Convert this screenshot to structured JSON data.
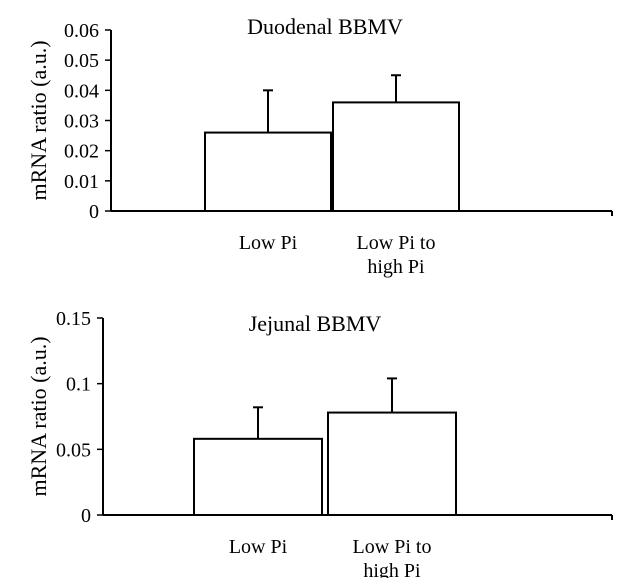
{
  "chart_data": [
    {
      "type": "bar",
      "title": "Duodenal BBMV",
      "ylabel": "mRNA ratio (a.u.)",
      "ylim": [
        0,
        0.06
      ],
      "yticks": [
        0,
        0.01,
        0.02,
        0.03,
        0.04,
        0.05,
        0.06
      ],
      "ytick_labels": [
        "0",
        "0.01",
        "0.02",
        "0.03",
        "0.04",
        "0.05",
        "0.06"
      ],
      "categories": [
        [
          "Low Pi"
        ],
        [
          "Low Pi to",
          "high Pi"
        ]
      ],
      "values": [
        0.026,
        0.036
      ],
      "errors": [
        0.014,
        0.009
      ],
      "grid": false
    },
    {
      "type": "bar",
      "title": "Jejunal BBMV",
      "ylabel": "mRNA ratio (a.u.)",
      "ylim": [
        0,
        0.15
      ],
      "yticks": [
        0,
        0.05,
        0.1,
        0.15
      ],
      "ytick_labels": [
        "0",
        "0.05",
        "0.1",
        "0.15"
      ],
      "categories": [
        [
          "Low Pi"
        ],
        [
          "Low Pi to",
          "high Pi"
        ]
      ],
      "values": [
        0.058,
        0.078
      ],
      "errors": [
        0.024,
        0.026
      ],
      "grid": false
    }
  ]
}
